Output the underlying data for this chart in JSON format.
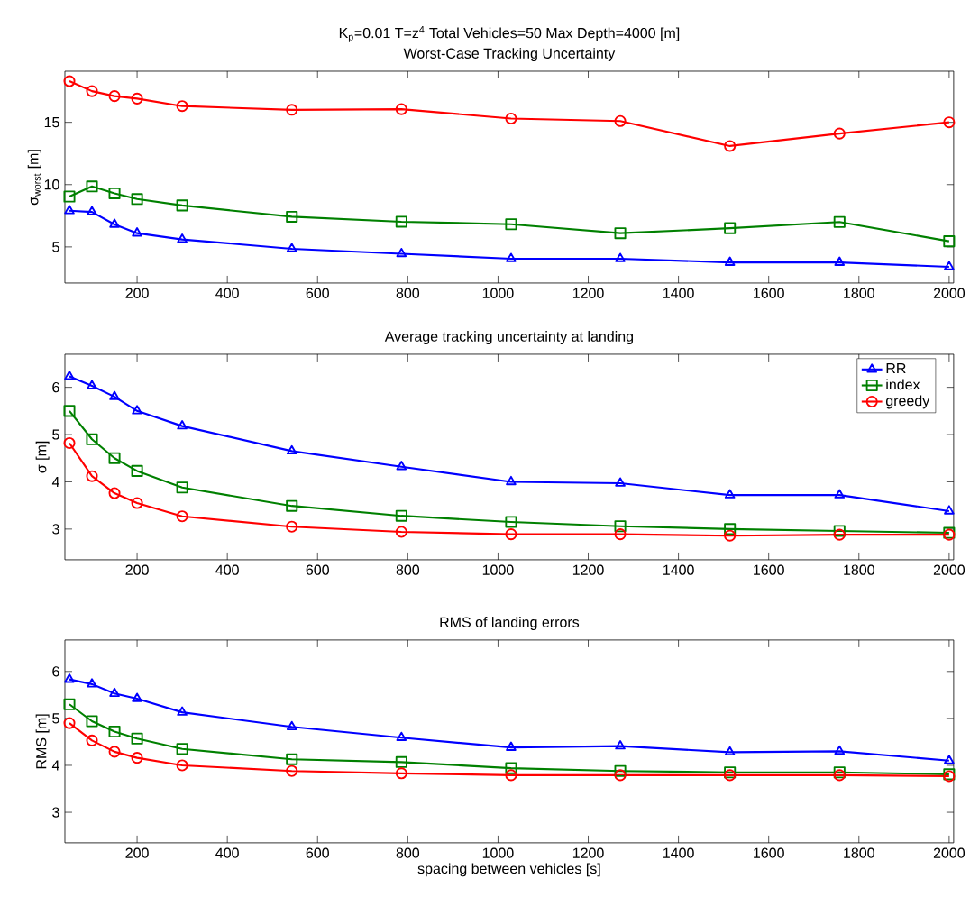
{
  "chart_data": [
    {
      "type": "line",
      "title": "K$_{p}$=0.01    T=z$^{4}$    Total Vehicles=50    Max Depth=4000 [m]",
      "subtitle": "Worst-Case Tracking Uncertainty",
      "ylabel": "σ$_{worst}$ [m]",
      "x": [
        50,
        100,
        150,
        200,
        300,
        543,
        786,
        1029,
        1271,
        1514,
        1757,
        2000
      ],
      "xlim": [
        40,
        2010
      ],
      "xticks": [
        200,
        400,
        600,
        800,
        1000,
        1200,
        1400,
        1600,
        1800,
        2000
      ],
      "ylim": [
        2.1,
        19.1
      ],
      "yticks": [
        5,
        10,
        15
      ],
      "grid": false,
      "line_style": "solid",
      "series": [
        {
          "color": "#0000ff",
          "marker": "triangle",
          "values": [
            7.9,
            7.8,
            6.8,
            6.1,
            5.6,
            4.85,
            4.45,
            4.05,
            4.05,
            3.75,
            3.75,
            3.4
          ]
        },
        {
          "color": "#008000",
          "marker": "square",
          "values": [
            9.04,
            9.85,
            9.3,
            8.84,
            8.33,
            7.42,
            7.02,
            6.82,
            6.1,
            6.5,
            7.0,
            5.45
          ]
        },
        {
          "color": "#ff0000",
          "marker": "circle",
          "values": [
            18.3,
            17.5,
            17.1,
            16.9,
            16.3,
            16.0,
            16.05,
            15.3,
            15.1,
            13.1,
            14.1,
            15.0
          ]
        }
      ]
    },
    {
      "type": "line",
      "subtitle": "Average tracking uncertainty at landing",
      "ylabel": "σ [m]",
      "x": [
        50,
        100,
        150,
        200,
        300,
        543,
        786,
        1029,
        1271,
        1514,
        1757,
        2000
      ],
      "xlim": [
        40,
        2010
      ],
      "xticks": [
        200,
        400,
        600,
        800,
        1000,
        1200,
        1400,
        1600,
        1800,
        2000
      ],
      "ylim": [
        2.35,
        6.7
      ],
      "yticks": [
        3,
        4,
        5,
        6
      ],
      "grid": false,
      "legend": "top right",
      "line_style": "solid",
      "series": [
        {
          "name": "RR",
          "color": "#0000ff",
          "marker": "triangle",
          "values": [
            6.23,
            6.03,
            5.8,
            5.5,
            5.18,
            4.65,
            4.32,
            4.0,
            3.97,
            3.72,
            3.72,
            3.38
          ]
        },
        {
          "name": "index",
          "color": "#008000",
          "marker": "square",
          "values": [
            5.5,
            4.9,
            4.5,
            4.23,
            3.88,
            3.49,
            3.28,
            3.15,
            3.06,
            3.0,
            2.96,
            2.92
          ]
        },
        {
          "name": "greedy",
          "color": "#ff0000",
          "marker": "circle",
          "values": [
            4.82,
            4.12,
            3.76,
            3.55,
            3.27,
            3.05,
            2.94,
            2.89,
            2.89,
            2.86,
            2.88,
            2.88
          ]
        }
      ]
    },
    {
      "type": "line",
      "subtitle": "RMS of landing errors",
      "ylabel": "RMS [m]",
      "xlabel": "spacing between vehicles [s]",
      "x": [
        50,
        100,
        150,
        200,
        300,
        543,
        786,
        1029,
        1271,
        1514,
        1757,
        2000
      ],
      "xlim": [
        40,
        2010
      ],
      "xticks": [
        200,
        400,
        600,
        800,
        1000,
        1200,
        1400,
        1600,
        1800,
        2000
      ],
      "ylim": [
        2.35,
        6.67
      ],
      "yticks": [
        3,
        4,
        5,
        6
      ],
      "grid": false,
      "line_style": "solid",
      "series": [
        {
          "color": "#0000ff",
          "marker": "triangle",
          "values": [
            5.83,
            5.73,
            5.53,
            5.42,
            5.13,
            4.82,
            4.59,
            4.38,
            4.41,
            4.28,
            4.3,
            4.1
          ]
        },
        {
          "color": "#008000",
          "marker": "square",
          "values": [
            5.3,
            4.94,
            4.72,
            4.57,
            4.35,
            4.13,
            4.07,
            3.94,
            3.88,
            3.85,
            3.85,
            3.81
          ]
        },
        {
          "color": "#ff0000",
          "marker": "circle",
          "values": [
            4.9,
            4.53,
            4.29,
            4.16,
            4.0,
            3.88,
            3.83,
            3.79,
            3.79,
            3.79,
            3.79,
            3.77
          ]
        }
      ]
    }
  ]
}
